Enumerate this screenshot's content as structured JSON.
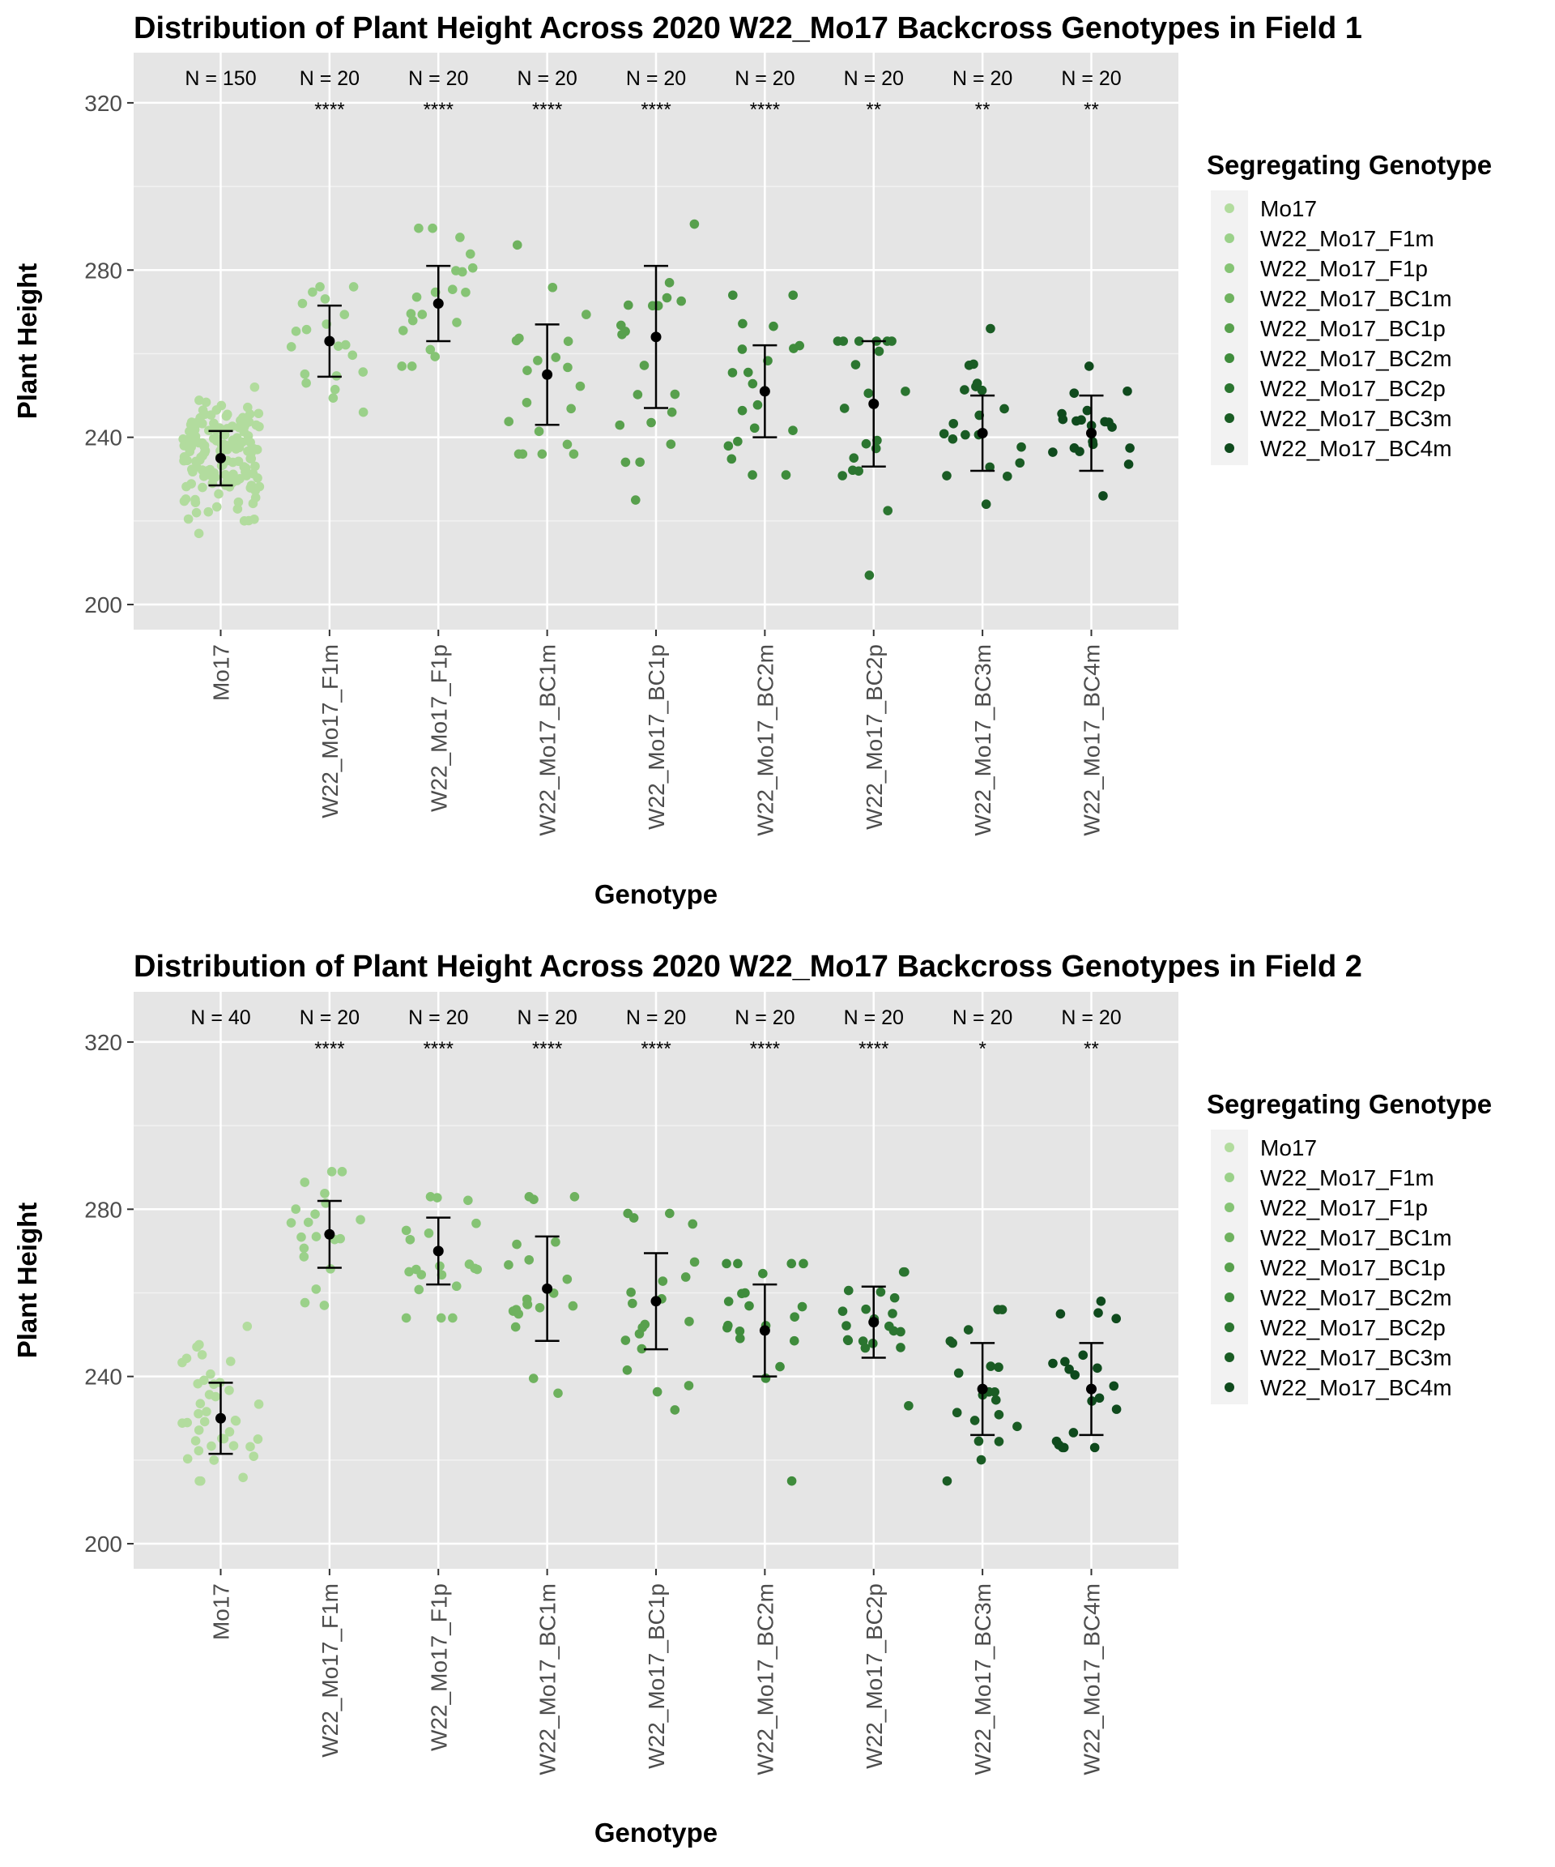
{
  "chart_data": [
    {
      "type": "scatter",
      "title": "Distribution of Plant Height Across 2020 W22_Mo17 Backcross Genotypes in Field 1",
      "xlabel": "Genotype",
      "ylabel": "Plant Height",
      "ylim": [
        194,
        332
      ],
      "yticks": [
        200,
        240,
        280,
        320
      ],
      "legend_title": "Segregating Genotype",
      "categories": [
        "Mo17",
        "W22_Mo17_F1m",
        "W22_Mo17_F1p",
        "W22_Mo17_BC1m",
        "W22_Mo17_BC1p",
        "W22_Mo17_BC2m",
        "W22_Mo17_BC2p",
        "W22_Mo17_BC3m",
        "W22_Mo17_BC4m"
      ],
      "colors": [
        "#b2dc9e",
        "#9bd18a",
        "#86c475",
        "#6fb25f",
        "#58a04d",
        "#3f8c3c",
        "#2b7530",
        "#1a5c24",
        "#0f4a1d"
      ],
      "n_labels": [
        "N = 150",
        "N = 20",
        "N = 20",
        "N = 20",
        "N = 20",
        "N = 20",
        "N = 20",
        "N = 20",
        "N = 20"
      ],
      "significance": [
        "",
        "****",
        "****",
        "****",
        "****",
        "****",
        "**",
        "**",
        "**"
      ],
      "mean": [
        235,
        263,
        272,
        255,
        264,
        251,
        248,
        241,
        241
      ],
      "sd": [
        6.5,
        8.5,
        9,
        12,
        17,
        11,
        15,
        9,
        9
      ],
      "n": [
        150,
        20,
        20,
        20,
        20,
        20,
        20,
        20,
        20
      ],
      "extremes": [
        [
          217,
          252
        ],
        [
          246,
          276
        ],
        [
          257,
          290
        ],
        [
          236,
          286
        ],
        [
          225,
          291
        ],
        [
          231,
          274
        ],
        [
          207,
          263
        ],
        [
          224,
          266
        ],
        [
          226,
          257
        ]
      ]
    },
    {
      "type": "scatter",
      "title": "Distribution of Plant Height Across 2020 W22_Mo17 Backcross Genotypes in Field 2",
      "xlabel": "Genotype",
      "ylabel": "Plant Height",
      "ylim": [
        194,
        332
      ],
      "yticks": [
        200,
        240,
        280,
        320
      ],
      "legend_title": "Segregating Genotype",
      "categories": [
        "Mo17",
        "W22_Mo17_F1m",
        "W22_Mo17_F1p",
        "W22_Mo17_BC1m",
        "W22_Mo17_BC1p",
        "W22_Mo17_BC2m",
        "W22_Mo17_BC2p",
        "W22_Mo17_BC3m",
        "W22_Mo17_BC4m"
      ],
      "colors": [
        "#b2dc9e",
        "#9bd18a",
        "#86c475",
        "#6fb25f",
        "#58a04d",
        "#3f8c3c",
        "#2b7530",
        "#1a5c24",
        "#0f4a1d"
      ],
      "n_labels": [
        "N = 40",
        "N = 20",
        "N = 20",
        "N = 20",
        "N = 20",
        "N = 20",
        "N = 20",
        "N = 20",
        "N = 20"
      ],
      "significance": [
        "",
        "****",
        "****",
        "****",
        "****",
        "****",
        "****",
        "*",
        "**"
      ],
      "mean": [
        230,
        274,
        270,
        261,
        258,
        251,
        253,
        237,
        237
      ],
      "sd": [
        8.5,
        8,
        8,
        12.5,
        11.5,
        11,
        8.5,
        11,
        11
      ],
      "n": [
        40,
        20,
        20,
        20,
        20,
        20,
        20,
        20,
        20
      ],
      "extremes": [
        [
          215,
          252
        ],
        [
          257,
          289
        ],
        [
          254,
          283
        ],
        [
          236,
          283
        ],
        [
          232,
          279
        ],
        [
          215,
          267
        ],
        [
          233,
          265
        ],
        [
          215,
          256
        ],
        [
          223,
          258
        ]
      ]
    }
  ]
}
